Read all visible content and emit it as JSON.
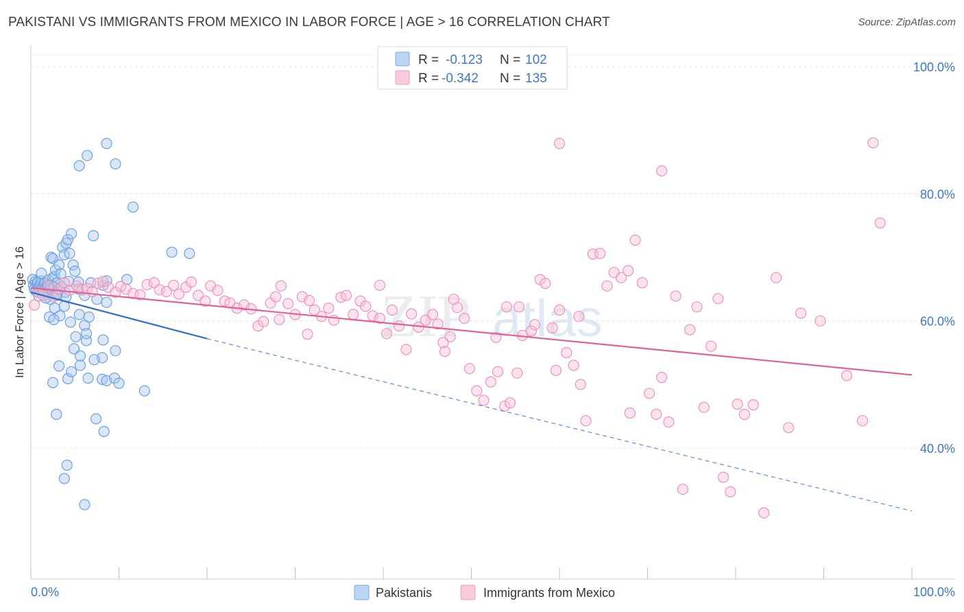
{
  "title": "PAKISTANI VS IMMIGRANTS FROM MEXICO IN LABOR FORCE | AGE > 16 CORRELATION CHART",
  "source": "Source: ZipAtlas.com",
  "watermark": {
    "zip": "ZIP",
    "atlas": "atlas"
  },
  "chart_data": {
    "type": "scatter",
    "title": "PAKISTANI VS IMMIGRANTS FROM MEXICO IN LABOR FORCE | AGE > 16 CORRELATION CHART",
    "xlabel": "",
    "ylabel": "In Labor Force | Age > 16",
    "xlim": [
      0,
      100
    ],
    "ylim": [
      20,
      100
    ],
    "x_tick_labels": [
      "0.0%",
      "100.0%"
    ],
    "y_ticks": [
      40,
      60,
      80,
      100
    ],
    "y_tick_labels": [
      "40.0%",
      "60.0%",
      "80.0%",
      "100.0%"
    ],
    "grid": true,
    "legend_position": "top-center",
    "legend": [
      {
        "name": "Pakistanis",
        "r_label": "R =",
        "r": "-0.123",
        "n_label": "N =",
        "n": "102",
        "color": "#8ab4e8",
        "line": "#2f6fca"
      },
      {
        "name": "Immigrants from Mexico",
        "r_label": "R =",
        "r": "-0.342",
        "n_label": "N =",
        "n": "135",
        "color": "#f4a8c4",
        "line": "#e0609a"
      }
    ],
    "series": [
      {
        "name": "Pakistanis",
        "trend": {
          "x": [
            0,
            20
          ],
          "y": [
            64.5,
            57.2
          ],
          "dashed_to": [
            100,
            30.1
          ]
        },
        "points": [
          [
            0.2,
            66.5
          ],
          [
            0.3,
            65.6
          ],
          [
            0.4,
            65.0
          ],
          [
            0.5,
            66.2
          ],
          [
            0.6,
            64.7
          ],
          [
            0.7,
            65.9
          ],
          [
            0.8,
            66.1
          ],
          [
            0.9,
            65.3
          ],
          [
            1.0,
            64.8
          ],
          [
            1.1,
            65.7
          ],
          [
            1.2,
            66.3
          ],
          [
            1.3,
            65.1
          ],
          [
            1.4,
            64.6
          ],
          [
            1.5,
            65.8
          ],
          [
            1.6,
            66.0
          ],
          [
            1.7,
            65.2
          ],
          [
            1.8,
            64.4
          ],
          [
            1.9,
            65.5
          ],
          [
            2.0,
            66.4
          ],
          [
            2.1,
            65.0
          ],
          [
            2.2,
            64.9
          ],
          [
            2.3,
            65.6
          ],
          [
            2.4,
            64.2
          ],
          [
            2.5,
            66.8
          ],
          [
            2.6,
            65.3
          ],
          [
            2.7,
            67.0
          ],
          [
            2.8,
            68.0
          ],
          [
            2.9,
            64.0
          ],
          [
            3.0,
            66.0
          ],
          [
            1.2,
            67.5
          ],
          [
            2.3,
            70.0
          ],
          [
            2.5,
            69.8
          ],
          [
            3.2,
            68.8
          ],
          [
            3.4,
            67.4
          ],
          [
            3.6,
            71.6
          ],
          [
            3.8,
            70.4
          ],
          [
            4.0,
            72.2
          ],
          [
            4.2,
            72.8
          ],
          [
            4.4,
            70.6
          ],
          [
            4.6,
            73.7
          ],
          [
            3.5,
            65.4
          ],
          [
            3.9,
            64.5
          ],
          [
            4.3,
            66.2
          ],
          [
            4.8,
            68.8
          ],
          [
            5.0,
            67.8
          ],
          [
            5.4,
            66.1
          ],
          [
            2.2,
            63.4
          ],
          [
            2.7,
            62.0
          ],
          [
            3.3,
            60.8
          ],
          [
            3.8,
            62.3
          ],
          [
            2.1,
            60.6
          ],
          [
            2.6,
            60.2
          ],
          [
            4.5,
            59.8
          ],
          [
            5.5,
            61.0
          ],
          [
            6.1,
            59.3
          ],
          [
            5.1,
            57.5
          ],
          [
            6.3,
            56.9
          ],
          [
            4.9,
            55.6
          ],
          [
            5.6,
            54.5
          ],
          [
            6.6,
            60.6
          ],
          [
            6.3,
            58.0
          ],
          [
            7.5,
            63.4
          ],
          [
            8.2,
            65.6
          ],
          [
            8.6,
            62.9
          ],
          [
            8.2,
            57.0
          ],
          [
            8.1,
            54.2
          ],
          [
            8.1,
            50.8
          ],
          [
            7.2,
            53.9
          ],
          [
            9.6,
            55.3
          ],
          [
            3.2,
            52.9
          ],
          [
            2.5,
            50.3
          ],
          [
            4.2,
            50.9
          ],
          [
            6.5,
            51.0
          ],
          [
            8.6,
            50.6
          ],
          [
            9.5,
            51.0
          ],
          [
            10.0,
            50.2
          ],
          [
            5.6,
            53.0
          ],
          [
            4.6,
            52.0
          ],
          [
            12.9,
            49.0
          ],
          [
            2.9,
            45.3
          ],
          [
            7.4,
            44.6
          ],
          [
            8.3,
            42.6
          ],
          [
            4.1,
            37.3
          ],
          [
            3.8,
            35.2
          ],
          [
            6.1,
            31.1
          ],
          [
            6.4,
            86.0
          ],
          [
            5.5,
            84.4
          ],
          [
            8.6,
            87.9
          ],
          [
            9.6,
            84.7
          ],
          [
            11.6,
            77.9
          ],
          [
            16.0,
            70.8
          ],
          [
            18.0,
            70.6
          ],
          [
            7.1,
            73.4
          ],
          [
            8.6,
            66.3
          ],
          [
            10.9,
            66.5
          ],
          [
            5.4,
            65.0
          ],
          [
            6.1,
            64.0
          ],
          [
            3.0,
            64.2
          ],
          [
            1.7,
            63.6
          ],
          [
            0.9,
            63.9
          ],
          [
            6.8,
            66.0
          ],
          [
            4.0,
            63.8
          ]
        ]
      },
      {
        "name": "Immigrants from Mexico",
        "trend": {
          "x": [
            0,
            100
          ],
          "y": [
            65.2,
            51.5
          ]
        },
        "points": [
          [
            0.4,
            62.5
          ],
          [
            0.8,
            64.5
          ],
          [
            1.4,
            64.0
          ],
          [
            2.0,
            65.5
          ],
          [
            2.6,
            63.8
          ],
          [
            3.2,
            65.0
          ],
          [
            3.8,
            66.0
          ],
          [
            4.4,
            64.8
          ],
          [
            5.2,
            65.5
          ],
          [
            5.8,
            64.9
          ],
          [
            6.4,
            65.1
          ],
          [
            7.0,
            64.6
          ],
          [
            7.6,
            65.9
          ],
          [
            8.2,
            66.2
          ],
          [
            8.8,
            65.3
          ],
          [
            9.6,
            64.5
          ],
          [
            10.2,
            65.4
          ],
          [
            10.8,
            65.0
          ],
          [
            11.6,
            64.3
          ],
          [
            12.4,
            64.1
          ],
          [
            13.2,
            65.7
          ],
          [
            14.0,
            66.0
          ],
          [
            14.6,
            64.9
          ],
          [
            15.4,
            64.6
          ],
          [
            16.2,
            65.6
          ],
          [
            16.8,
            64.2
          ],
          [
            17.6,
            65.3
          ],
          [
            18.2,
            66.1
          ],
          [
            19.0,
            64.0
          ],
          [
            19.8,
            63.1
          ],
          [
            20.4,
            65.5
          ],
          [
            21.2,
            64.8
          ],
          [
            22.0,
            63.1
          ],
          [
            22.6,
            62.8
          ],
          [
            23.4,
            62.0
          ],
          [
            24.2,
            62.5
          ],
          [
            25.0,
            61.9
          ],
          [
            25.8,
            59.2
          ],
          [
            26.4,
            59.9
          ],
          [
            27.2,
            62.8
          ],
          [
            27.8,
            63.8
          ],
          [
            28.4,
            65.5
          ],
          [
            29.2,
            62.7
          ],
          [
            30.0,
            61.0
          ],
          [
            30.8,
            63.8
          ],
          [
            31.6,
            63.2
          ],
          [
            32.2,
            61.7
          ],
          [
            33.0,
            60.7
          ],
          [
            33.8,
            62.0
          ],
          [
            34.4,
            60.1
          ],
          [
            35.2,
            63.7
          ],
          [
            35.8,
            64.0
          ],
          [
            36.6,
            61.0
          ],
          [
            37.4,
            63.1
          ],
          [
            38.0,
            62.3
          ],
          [
            38.8,
            60.8
          ],
          [
            39.6,
            60.4
          ],
          [
            40.4,
            58.0
          ],
          [
            41.0,
            61.7
          ],
          [
            41.8,
            59.2
          ],
          [
            42.6,
            55.5
          ],
          [
            43.2,
            61.1
          ],
          [
            44.0,
            59.0
          ],
          [
            44.8,
            60.1
          ],
          [
            45.6,
            61.0
          ],
          [
            46.2,
            59.5
          ],
          [
            47.0,
            55.2
          ],
          [
            47.6,
            57.5
          ],
          [
            48.4,
            62.1
          ],
          [
            49.2,
            60.4
          ],
          [
            49.8,
            52.5
          ],
          [
            50.6,
            49.0
          ],
          [
            51.4,
            47.5
          ],
          [
            52.2,
            50.4
          ],
          [
            53.0,
            52.0
          ],
          [
            53.8,
            46.6
          ],
          [
            54.4,
            47.1
          ],
          [
            55.2,
            51.8
          ],
          [
            55.8,
            57.7
          ],
          [
            56.8,
            58.4
          ],
          [
            57.8,
            66.5
          ],
          [
            58.4,
            65.9
          ],
          [
            59.2,
            58.9
          ],
          [
            60.0,
            61.7
          ],
          [
            60.8,
            55.0
          ],
          [
            61.6,
            53.0
          ],
          [
            62.4,
            50.0
          ],
          [
            63.0,
            44.3
          ],
          [
            63.8,
            70.5
          ],
          [
            64.6,
            70.6
          ],
          [
            65.4,
            65.5
          ],
          [
            66.2,
            67.6
          ],
          [
            67.0,
            66.8
          ],
          [
            67.8,
            67.9
          ],
          [
            68.6,
            72.7
          ],
          [
            69.4,
            66.0
          ],
          [
            70.2,
            48.6
          ],
          [
            71.0,
            45.3
          ],
          [
            71.6,
            51.1
          ],
          [
            72.4,
            44.1
          ],
          [
            73.2,
            63.9
          ],
          [
            74.0,
            33.5
          ],
          [
            74.8,
            58.6
          ],
          [
            75.6,
            62.2
          ],
          [
            76.4,
            46.4
          ],
          [
            77.2,
            56.0
          ],
          [
            78.0,
            63.5
          ],
          [
            78.6,
            35.4
          ],
          [
            79.4,
            33.1
          ],
          [
            80.2,
            46.9
          ],
          [
            81.0,
            45.3
          ],
          [
            82.0,
            46.8
          ],
          [
            83.2,
            29.8
          ],
          [
            84.6,
            66.8
          ],
          [
            86.0,
            43.2
          ],
          [
            87.4,
            61.2
          ],
          [
            89.6,
            60.0
          ],
          [
            92.6,
            51.4
          ],
          [
            94.4,
            44.3
          ],
          [
            95.6,
            88.0
          ],
          [
            96.4,
            75.4
          ],
          [
            39.6,
            65.6
          ],
          [
            31.4,
            57.9
          ],
          [
            28.2,
            60.2
          ],
          [
            46.8,
            56.6
          ],
          [
            54.0,
            62.2
          ],
          [
            57.2,
            59.4
          ],
          [
            59.6,
            52.2
          ],
          [
            68.0,
            45.5
          ],
          [
            60.0,
            87.9
          ],
          [
            71.6,
            83.6
          ],
          [
            55.4,
            62.2
          ],
          [
            62.2,
            60.7
          ],
          [
            52.8,
            57.4
          ],
          [
            48.0,
            63.4
          ]
        ]
      }
    ]
  }
}
